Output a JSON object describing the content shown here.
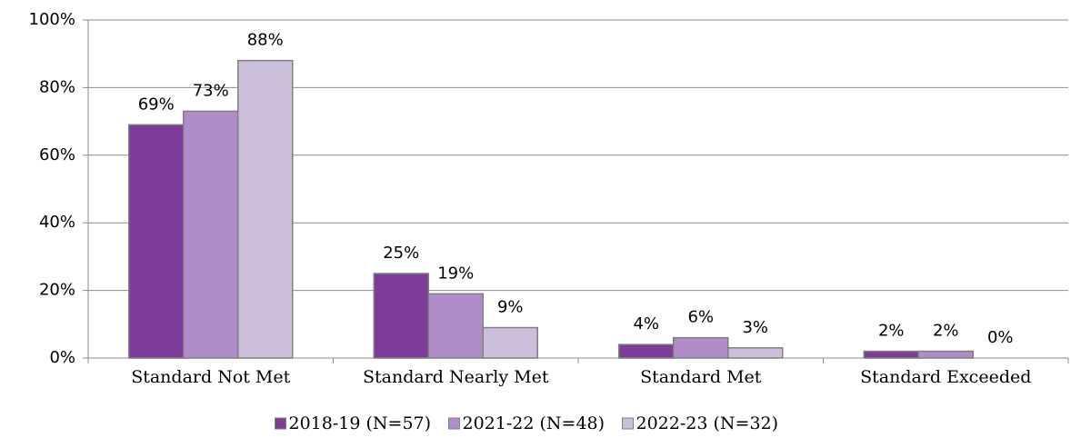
{
  "chart_data": {
    "type": "bar",
    "categories": [
      "Standard Not Met",
      "Standard Nearly Met",
      "Standard Met",
      "Standard Exceeded"
    ],
    "series": [
      {
        "name": "2018-19 (N=57)",
        "color": "#7d3c98",
        "values": [
          69,
          25,
          4,
          2
        ],
        "value_labels": [
          "69%",
          "25%",
          "4%",
          "2%"
        ]
      },
      {
        "name": "2021-22 (N=48)",
        "color": "#b08cc8",
        "values": [
          73,
          19,
          6,
          2
        ],
        "value_labels": [
          "73%",
          "19%",
          "6%",
          "2%"
        ]
      },
      {
        "name": "2022-23 (N=32)",
        "color": "#cbbfdc",
        "values": [
          88,
          9,
          3,
          0
        ],
        "value_labels": [
          "88%",
          "9%",
          "3%",
          "0%"
        ]
      }
    ],
    "ylim": [
      0,
      100
    ],
    "yticks": [
      {
        "value": 0,
        "label": "0%"
      },
      {
        "value": 20,
        "label": "20%"
      },
      {
        "value": 40,
        "label": "40%"
      },
      {
        "value": 60,
        "label": "60%"
      },
      {
        "value": 80,
        "label": "80%"
      },
      {
        "value": 100,
        "label": "100%"
      }
    ],
    "grid": true,
    "legend": "bottom"
  }
}
